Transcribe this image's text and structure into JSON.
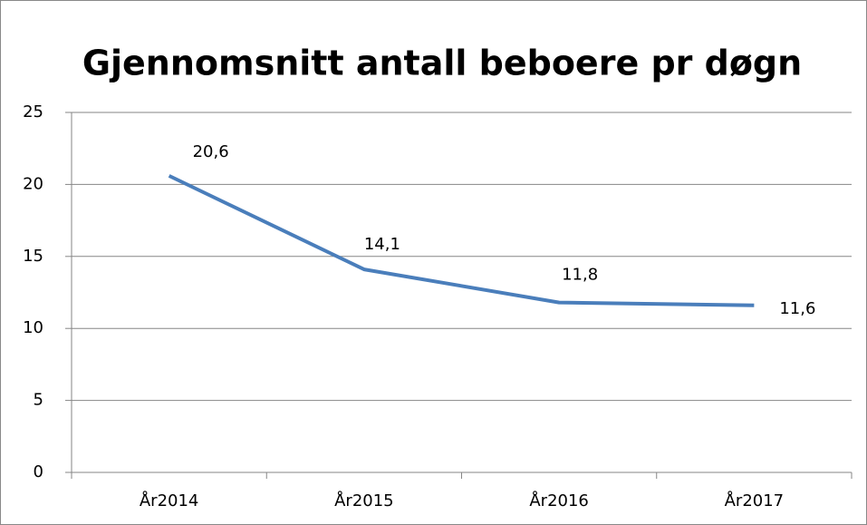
{
  "chart_data": {
    "type": "line",
    "title": "Gjennomsnitt antall beboere pr døgn",
    "categories": [
      "År2014",
      "År2015",
      "År2016",
      "År2017"
    ],
    "series": [
      {
        "name": "Gjennomsnitt antall beboere pr døgn",
        "color": "#4a7ebb",
        "values": [
          20.6,
          14.1,
          11.8,
          11.6
        ],
        "value_labels": [
          "20,6",
          "14,1",
          "11,8",
          "11,6"
        ]
      }
    ],
    "ylim": [
      0,
      25
    ],
    "yticks": [
      0,
      5,
      10,
      15,
      20,
      25
    ],
    "grid": true
  }
}
